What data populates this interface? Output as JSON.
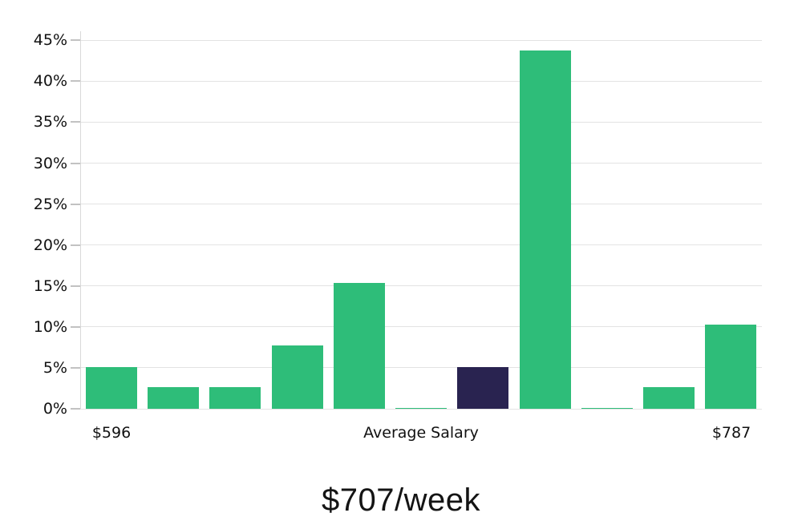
{
  "chart_data": {
    "type": "bar",
    "title": "$707/week",
    "values": [
      5.1,
      2.6,
      2.6,
      7.7,
      15.4,
      0.1,
      5.1,
      43.8,
      0.1,
      2.6,
      10.3
    ],
    "highlight_index": 6,
    "colors": {
      "bar_default": "#2ebd79",
      "bar_highlight": "#292350",
      "gridline": "#e3e3e3",
      "axis_line": "#d9d9d9",
      "tick": "#c2c2c2",
      "text": "#111111"
    },
    "y_axis": {
      "unit": "%",
      "tick_labels": [
        "0%",
        "5%",
        "10%",
        "15%",
        "20%",
        "25%",
        "30%",
        "35%",
        "40%",
        "45%"
      ],
      "tick_values": [
        0,
        5,
        10,
        15,
        20,
        25,
        30,
        35,
        40,
        45
      ],
      "range_max": 46.1,
      "gridlines": true
    },
    "x_axis": {
      "left_label": "$596",
      "center_label": "Average Salary",
      "right_label": "$787"
    },
    "legend": null
  }
}
